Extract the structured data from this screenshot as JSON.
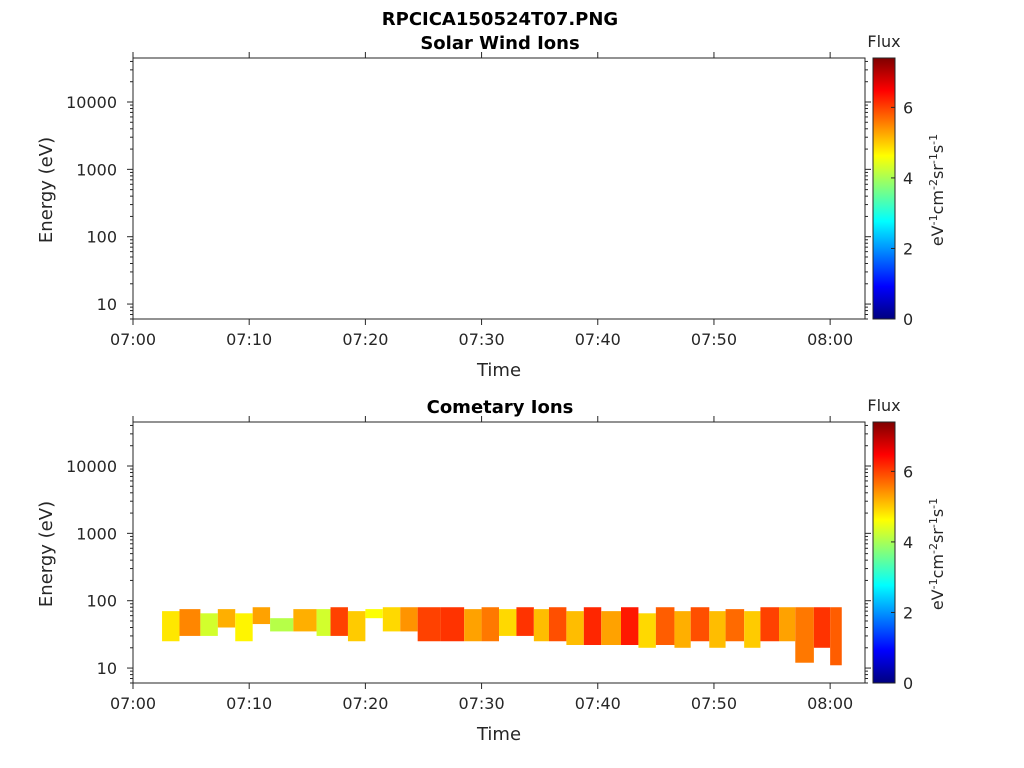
{
  "figure_title": "RPCICA150524T07.PNG",
  "colormap": [
    "#00007f",
    "#0000ff",
    "#007fff",
    "#00ffff",
    "#7fff7f",
    "#ffff00",
    "#ff7f00",
    "#ff0000",
    "#7f0000"
  ],
  "chart_data": [
    {
      "type": "heatmap",
      "title": "Solar Wind Ions",
      "xlabel": "Time",
      "ylabel": "Energy (eV)",
      "x_ticks": [
        "07:00",
        "07:10",
        "07:20",
        "07:30",
        "07:40",
        "07:50",
        "08:00"
      ],
      "xlim_minutes": [
        0,
        63
      ],
      "yscale": "log",
      "ylim": [
        6,
        45000
      ],
      "y_ticks": [
        "10",
        "100",
        "1000",
        "10000"
      ],
      "colorbar": {
        "title": "Flux",
        "label": "eV-1cm-2sr-1s-1",
        "ticks": [
          "0",
          "2",
          "4",
          "6"
        ],
        "range": [
          0,
          7.4
        ]
      },
      "cells": []
    },
    {
      "type": "heatmap",
      "title": "Cometary Ions",
      "xlabel": "Time",
      "ylabel": "Energy (eV)",
      "x_ticks": [
        "07:00",
        "07:10",
        "07:20",
        "07:30",
        "07:40",
        "07:50",
        "08:00"
      ],
      "xlim_minutes": [
        0,
        63
      ],
      "yscale": "log",
      "ylim": [
        6,
        45000
      ],
      "y_ticks": [
        "10",
        "100",
        "1000",
        "10000"
      ],
      "colorbar": {
        "title": "Flux",
        "label": "eV-1cm-2sr-1s-1",
        "ticks": [
          "0",
          "2",
          "4",
          "6"
        ],
        "range": [
          0,
          7.4
        ]
      },
      "cells": [
        {
          "t0": 2.5,
          "t1": 4.0,
          "e0": 25,
          "e1": 70,
          "flux": 4.8
        },
        {
          "t0": 4.0,
          "t1": 5.8,
          "e0": 30,
          "e1": 75,
          "flux": 5.5
        },
        {
          "t0": 5.8,
          "t1": 7.3,
          "e0": 30,
          "e1": 65,
          "flux": 4.3
        },
        {
          "t0": 7.3,
          "t1": 8.8,
          "e0": 40,
          "e1": 75,
          "flux": 5.2
        },
        {
          "t0": 8.8,
          "t1": 10.3,
          "e0": 25,
          "e1": 65,
          "flux": 4.7
        },
        {
          "t0": 10.3,
          "t1": 11.8,
          "e0": 45,
          "e1": 80,
          "flux": 5.3
        },
        {
          "t0": 11.8,
          "t1": 13.8,
          "e0": 35,
          "e1": 55,
          "flux": 4.1
        },
        {
          "t0": 13.8,
          "t1": 15.8,
          "e0": 35,
          "e1": 75,
          "flux": 5.2
        },
        {
          "t0": 15.8,
          "t1": 17.0,
          "e0": 30,
          "e1": 75,
          "flux": 4.3
        },
        {
          "t0": 17.0,
          "t1": 18.5,
          "e0": 30,
          "e1": 80,
          "flux": 6.0
        },
        {
          "t0": 18.5,
          "t1": 20.0,
          "e0": 25,
          "e1": 70,
          "flux": 5.0
        },
        {
          "t0": 20.0,
          "t1": 21.5,
          "e0": 55,
          "e1": 75,
          "flux": 4.6
        },
        {
          "t0": 21.5,
          "t1": 23.0,
          "e0": 35,
          "e1": 80,
          "flux": 4.9
        },
        {
          "t0": 23.0,
          "t1": 24.5,
          "e0": 35,
          "e1": 80,
          "flux": 5.4
        },
        {
          "t0": 24.5,
          "t1": 26.5,
          "e0": 25,
          "e1": 80,
          "flux": 6.0
        },
        {
          "t0": 26.5,
          "t1": 28.5,
          "e0": 25,
          "e1": 80,
          "flux": 6.1
        },
        {
          "t0": 28.5,
          "t1": 30.0,
          "e0": 25,
          "e1": 75,
          "flux": 5.3
        },
        {
          "t0": 30.0,
          "t1": 31.5,
          "e0": 25,
          "e1": 80,
          "flux": 5.6
        },
        {
          "t0": 31.5,
          "t1": 33.0,
          "e0": 30,
          "e1": 75,
          "flux": 4.9
        },
        {
          "t0": 33.0,
          "t1": 34.5,
          "e0": 30,
          "e1": 80,
          "flux": 6.1
        },
        {
          "t0": 34.5,
          "t1": 35.8,
          "e0": 25,
          "e1": 75,
          "flux": 5.1
        },
        {
          "t0": 35.8,
          "t1": 37.3,
          "e0": 25,
          "e1": 80,
          "flux": 5.9
        },
        {
          "t0": 37.3,
          "t1": 38.8,
          "e0": 22,
          "e1": 70,
          "flux": 5.1
        },
        {
          "t0": 38.8,
          "t1": 40.3,
          "e0": 22,
          "e1": 80,
          "flux": 6.2
        },
        {
          "t0": 40.3,
          "t1": 42.0,
          "e0": 22,
          "e1": 70,
          "flux": 5.3
        },
        {
          "t0": 42.0,
          "t1": 43.5,
          "e0": 22,
          "e1": 80,
          "flux": 6.3
        },
        {
          "t0": 43.5,
          "t1": 45.0,
          "e0": 20,
          "e1": 65,
          "flux": 4.9
        },
        {
          "t0": 45.0,
          "t1": 46.6,
          "e0": 22,
          "e1": 80,
          "flux": 5.8
        },
        {
          "t0": 46.6,
          "t1": 48.0,
          "e0": 20,
          "e1": 70,
          "flux": 5.2
        },
        {
          "t0": 48.0,
          "t1": 49.6,
          "e0": 25,
          "e1": 80,
          "flux": 5.9
        },
        {
          "t0": 49.6,
          "t1": 51.0,
          "e0": 20,
          "e1": 70,
          "flux": 5.1
        },
        {
          "t0": 51.0,
          "t1": 52.6,
          "e0": 25,
          "e1": 75,
          "flux": 5.7
        },
        {
          "t0": 52.6,
          "t1": 54.0,
          "e0": 20,
          "e1": 70,
          "flux": 5.0
        },
        {
          "t0": 54.0,
          "t1": 55.6,
          "e0": 25,
          "e1": 80,
          "flux": 6.0
        },
        {
          "t0": 55.6,
          "t1": 57.0,
          "e0": 25,
          "e1": 80,
          "flux": 5.3
        },
        {
          "t0": 57.0,
          "t1": 58.6,
          "e0": 12,
          "e1": 80,
          "flux": 5.6
        },
        {
          "t0": 58.6,
          "t1": 60.0,
          "e0": 20,
          "e1": 80,
          "flux": 6.1
        },
        {
          "t0": 60.0,
          "t1": 61.0,
          "e0": 11,
          "e1": 80,
          "flux": 5.8
        }
      ]
    }
  ]
}
